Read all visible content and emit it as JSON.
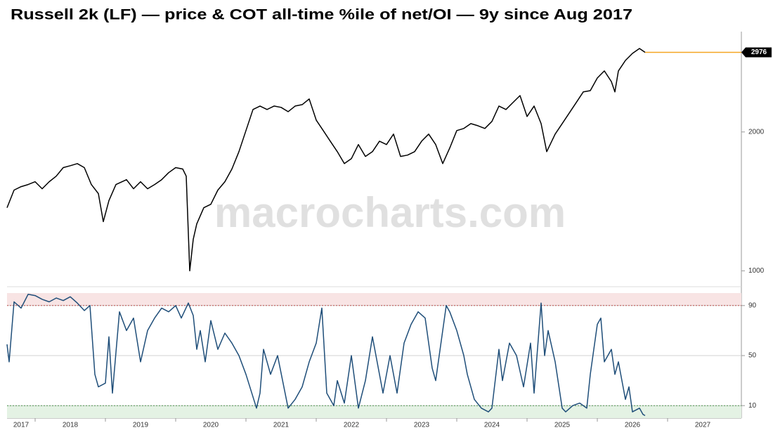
{
  "chart_data": [
    {
      "type": "line",
      "title": "Russell 2k (LF) — price & COT all-time %ile of net/OI — 9y since Aug 2017",
      "watermark": "macrocharts.com",
      "log_scale": true,
      "color": "#000000",
      "last_line_color": "#f5a623",
      "xlim": [
        2017.6,
        2028.05
      ],
      "ylim": [
        950,
        3300
      ],
      "yticks": [
        1000,
        2000
      ],
      "x": [
        2017.6,
        2017.7,
        2017.8,
        2017.9,
        2018.0,
        2018.1,
        2018.2,
        2018.3,
        2018.4,
        2018.5,
        2018.6,
        2018.7,
        2018.8,
        2018.9,
        2018.97,
        2019.05,
        2019.15,
        2019.3,
        2019.4,
        2019.5,
        2019.6,
        2019.7,
        2019.8,
        2019.9,
        2020.0,
        2020.1,
        2020.15,
        2020.2,
        2020.25,
        2020.3,
        2020.4,
        2020.5,
        2020.6,
        2020.7,
        2020.8,
        2020.9,
        2021.0,
        2021.1,
        2021.2,
        2021.3,
        2021.4,
        2021.5,
        2021.6,
        2021.7,
        2021.8,
        2021.9,
        2022.0,
        2022.1,
        2022.2,
        2022.3,
        2022.4,
        2022.5,
        2022.6,
        2022.7,
        2022.8,
        2022.9,
        2023.0,
        2023.1,
        2023.2,
        2023.3,
        2023.4,
        2023.5,
        2023.6,
        2023.7,
        2023.8,
        2023.9,
        2024.0,
        2024.1,
        2024.2,
        2024.3,
        2024.4,
        2024.5,
        2024.6,
        2024.7,
        2024.8,
        2024.9,
        2025.0,
        2025.1,
        2025.2,
        2025.28,
        2025.4,
        2025.5,
        2025.6,
        2025.7,
        2025.8,
        2025.9,
        2026.0,
        2026.1,
        2026.2,
        2026.25,
        2026.3,
        2026.4,
        2026.5,
        2026.6,
        2026.68
      ],
      "values": [
        1370,
        1496,
        1522,
        1538,
        1560,
        1506,
        1560,
        1604,
        1674,
        1690,
        1708,
        1674,
        1538,
        1470,
        1278,
        1420,
        1538,
        1576,
        1506,
        1560,
        1506,
        1538,
        1576,
        1632,
        1674,
        1662,
        1604,
        1000,
        1171,
        1264,
        1370,
        1394,
        1496,
        1560,
        1662,
        1813,
        2014,
        2237,
        2276,
        2237,
        2276,
        2261,
        2213,
        2276,
        2292,
        2358,
        2122,
        2014,
        1910,
        1813,
        1708,
        1750,
        1878,
        1770,
        1813,
        1910,
        1878,
        1979,
        1770,
        1782,
        1813,
        1910,
        1979,
        1878,
        1708,
        1846,
        2014,
        2035,
        2085,
        2063,
        2035,
        2108,
        2276,
        2237,
        2316,
        2398,
        2160,
        2276,
        2085,
        1813,
        1979,
        2085,
        2198,
        2316,
        2442,
        2458,
        2618,
        2712,
        2572,
        2442,
        2712,
        2858,
        2960,
        3034,
        2976
      ]
    },
    {
      "type": "line",
      "color": "#1f4e79",
      "grid": true,
      "xlim": [
        2017.6,
        2028.05
      ],
      "ylim": [
        0,
        100
      ],
      "yticks": [
        10,
        50,
        90
      ],
      "bands": [
        {
          "from": 90,
          "to": 100,
          "color": "#f8e4e4",
          "line_color": "#c0504d"
        },
        {
          "from": 0,
          "to": 10,
          "color": "#e4f2e4",
          "line_color": "#4f9a4f"
        }
      ],
      "xticks": [
        {
          "value": 2017,
          "label": "2017"
        },
        {
          "value": 2018,
          "label": "2018"
        },
        {
          "value": 2019,
          "label": "2019"
        },
        {
          "value": 2020,
          "label": "2020"
        },
        {
          "value": 2021,
          "label": "2021"
        },
        {
          "value": 2022,
          "label": "2022"
        },
        {
          "value": 2023,
          "label": "2023"
        },
        {
          "value": 2024,
          "label": "2024"
        },
        {
          "value": 2025,
          "label": "2025"
        },
        {
          "value": 2026,
          "label": "2026"
        },
        {
          "value": 2027,
          "label": "2027"
        }
      ],
      "x": [
        2017.6,
        2017.63,
        2017.7,
        2017.8,
        2017.9,
        2018.0,
        2018.1,
        2018.2,
        2018.3,
        2018.4,
        2018.5,
        2018.6,
        2018.7,
        2018.78,
        2018.85,
        2018.9,
        2019.0,
        2019.05,
        2019.1,
        2019.2,
        2019.3,
        2019.4,
        2019.5,
        2019.6,
        2019.7,
        2019.8,
        2019.9,
        2020.0,
        2020.08,
        2020.18,
        2020.25,
        2020.3,
        2020.35,
        2020.42,
        2020.5,
        2020.6,
        2020.7,
        2020.8,
        2020.9,
        2021.0,
        2021.15,
        2021.2,
        2021.25,
        2021.35,
        2021.45,
        2021.6,
        2021.7,
        2021.8,
        2021.9,
        2022.0,
        2022.08,
        2022.15,
        2022.25,
        2022.3,
        2022.4,
        2022.5,
        2022.6,
        2022.7,
        2022.8,
        2022.95,
        2023.05,
        2023.15,
        2023.25,
        2023.35,
        2023.45,
        2023.55,
        2023.65,
        2023.7,
        2023.85,
        2023.9,
        2024.0,
        2024.1,
        2024.15,
        2024.25,
        2024.35,
        2024.45,
        2024.5,
        2024.6,
        2024.65,
        2024.75,
        2024.85,
        2024.95,
        2025.05,
        2025.1,
        2025.2,
        2025.25,
        2025.3,
        2025.4,
        2025.5,
        2025.55,
        2025.65,
        2025.75,
        2025.85,
        2025.9,
        2026.0,
        2026.05,
        2026.1,
        2026.2,
        2026.25,
        2026.3,
        2026.4,
        2026.45,
        2026.5,
        2026.6,
        2026.65,
        2026.68
      ],
      "values": [
        59,
        45,
        93,
        88,
        99,
        98,
        95,
        93,
        96,
        94,
        97,
        92,
        86,
        90,
        35,
        25,
        28,
        65,
        20,
        85,
        70,
        80,
        45,
        70,
        80,
        88,
        85,
        90,
        80,
        92,
        82,
        55,
        70,
        45,
        78,
        55,
        68,
        60,
        50,
        35,
        8,
        20,
        55,
        35,
        50,
        8,
        15,
        25,
        45,
        60,
        88,
        20,
        10,
        30,
        12,
        50,
        8,
        30,
        65,
        20,
        50,
        20,
        60,
        75,
        85,
        80,
        40,
        30,
        90,
        85,
        70,
        50,
        35,
        15,
        8,
        5,
        8,
        55,
        30,
        60,
        50,
        25,
        60,
        20,
        92,
        50,
        70,
        45,
        8,
        5,
        10,
        12,
        8,
        35,
        75,
        80,
        45,
        55,
        35,
        45,
        15,
        25,
        5,
        8,
        3,
        2
      ]
    }
  ]
}
